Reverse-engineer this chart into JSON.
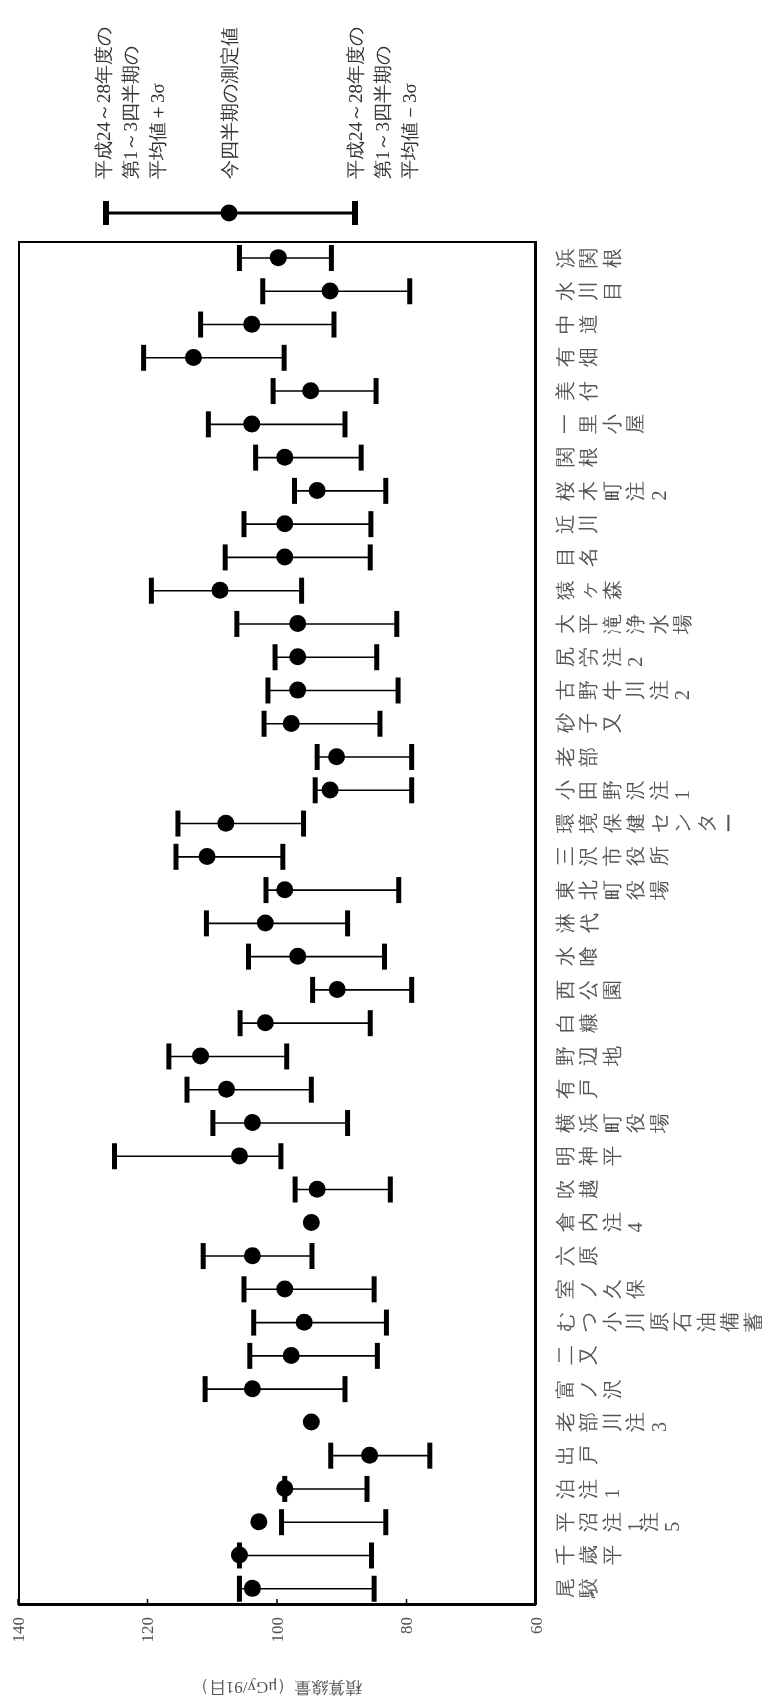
{
  "chart_data": {
    "type": "scatter",
    "orientation": "horizontal",
    "xlabel": "積算線量（μGy/91日）",
    "categories": [
      "浜関根",
      "水川目",
      "中道",
      "有畑",
      "美付",
      "一里小屋",
      "関根",
      "桜木町注2",
      "近川",
      "目名",
      "猿ヶ森",
      "大平滝浄水場",
      "尻労注2",
      "古野牛川注2",
      "砂子又",
      "老部",
      "小田野沢注1",
      "環境保健センター",
      "三沢市役所",
      "東北町役場",
      "淋代",
      "水喰",
      "西公園",
      "白糠",
      "野辺地",
      "有戸",
      "横浜町役場",
      "明神平",
      "吹越",
      "倉内注4",
      "六原",
      "室ノ久保",
      "むつ小川原石油備蓄",
      "二又",
      "富ノ沢",
      "老部川注3",
      "出戸",
      "泊注1",
      "平沼注1注5",
      "千歳平",
      "尾駮"
    ],
    "series": [
      {
        "name": "今四半期の測定値",
        "color": "#000000",
        "values": [
          99.8,
          91.8,
          103.9,
          112.9,
          94.8,
          103.9,
          98.8,
          93.8,
          98.8,
          98.8,
          108.8,
          96.8,
          96.8,
          96.8,
          97.8,
          90.8,
          91.8,
          107.9,
          110.8,
          98.8,
          101.8,
          96.8,
          90.7,
          101.8,
          111.8,
          107.8,
          103.8,
          105.8,
          93.8,
          94.7,
          103.8,
          98.8,
          95.8,
          97.8,
          103.8,
          94.7,
          85.7,
          98.8,
          102.8,
          105.8,
          103.8
        ],
        "errors": [
          [
            91.6,
            105.8
          ],
          [
            79.5,
            102.2
          ],
          [
            91.2,
            111.8
          ],
          [
            98.9,
            120.6
          ],
          [
            84.7,
            100.6
          ],
          [
            89.5,
            110.6
          ],
          [
            87.0,
            103.3
          ],
          [
            83.2,
            97.3
          ],
          [
            85.5,
            105.1
          ],
          [
            85.6,
            108.0
          ],
          [
            96.2,
            119.4
          ],
          [
            81.5,
            106.2
          ],
          [
            84.6,
            100.3
          ],
          [
            81.3,
            101.4
          ],
          [
            84.1,
            102.0
          ],
          [
            79.2,
            93.8
          ],
          [
            79.2,
            94.1
          ],
          [
            95.9,
            115.3
          ],
          [
            99.1,
            115.6
          ],
          [
            81.2,
            101.7
          ],
          [
            89.1,
            110.9
          ],
          [
            83.4,
            104.4
          ],
          [
            79.2,
            94.5
          ],
          [
            85.6,
            105.7
          ],
          [
            98.5,
            116.7
          ],
          [
            94.7,
            113.9
          ],
          [
            89.1,
            109.9
          ],
          [
            99.4,
            125.1
          ],
          [
            82.5,
            97.2
          ],
          null,
          [
            94.6,
            111.4
          ],
          [
            85.0,
            105.1
          ],
          [
            83.1,
            103.6
          ],
          [
            84.5,
            104.2
          ],
          [
            89.5,
            111.1
          ],
          null,
          [
            76.4,
            91.7
          ],
          [
            86.1,
            98.8
          ],
          [
            83.2,
            99.3
          ],
          [
            85.4,
            105.8
          ],
          [
            85.0,
            105.8
          ]
        ]
      }
    ],
    "annotations": [
      "平成24～28年度の",
      "第1～3四半期の",
      "平均値＋3σ",
      "平成24～28年度の",
      "第1～3四半期の",
      "平均値－3σ"
    ],
    "xlim": [
      140,
      60
    ],
    "xticks": [
      140,
      120,
      100,
      80,
      60
    ],
    "marker": "circle",
    "legend": "top"
  }
}
